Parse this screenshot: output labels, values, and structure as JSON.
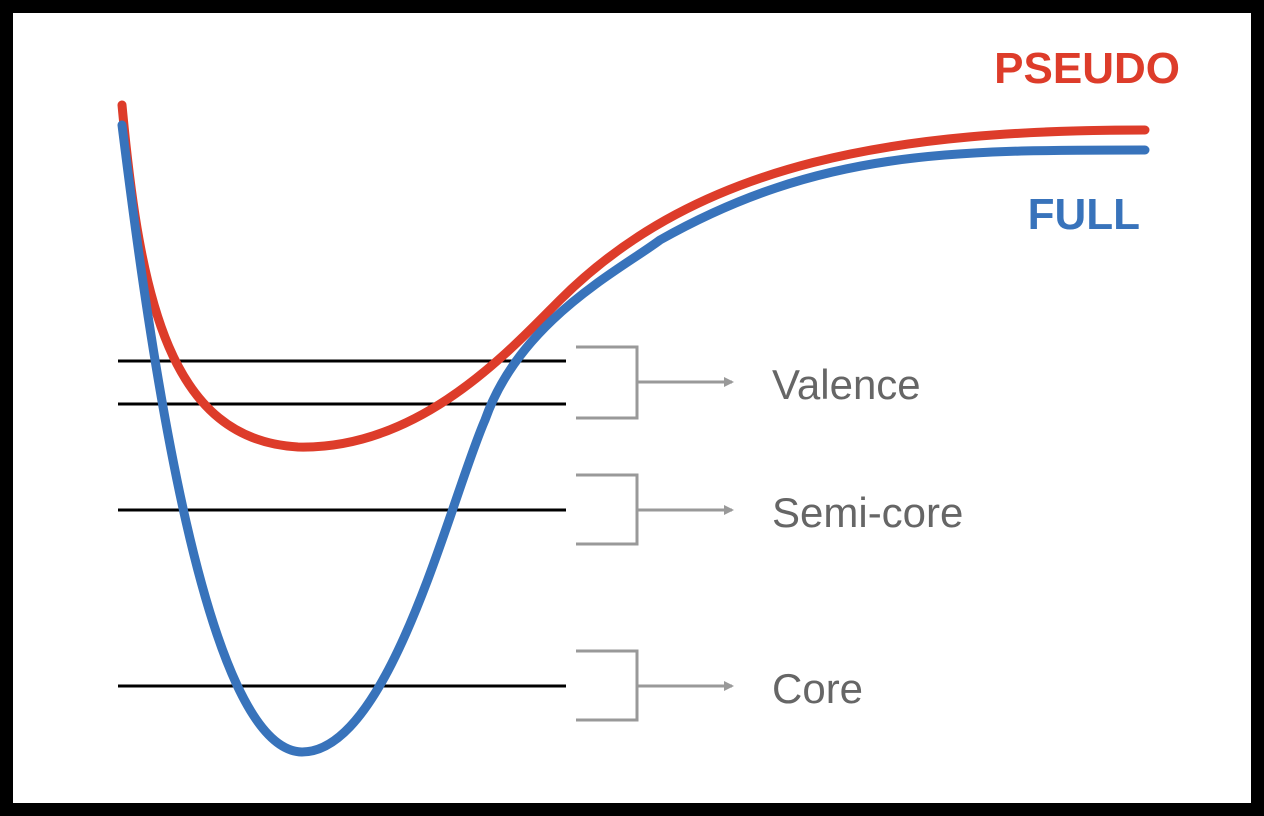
{
  "curves": {
    "pseudo": {
      "label": "PSEUDO",
      "color": "#dd3c2a"
    },
    "full": {
      "label": "FULL",
      "color": "#3873bb"
    }
  },
  "levels": {
    "valence": "Valence",
    "semicore": "Semi-core",
    "core": "Core"
  },
  "colors": {
    "level_lines": "#000000",
    "brackets_arrows": "#999999",
    "level_text": "#666666"
  }
}
